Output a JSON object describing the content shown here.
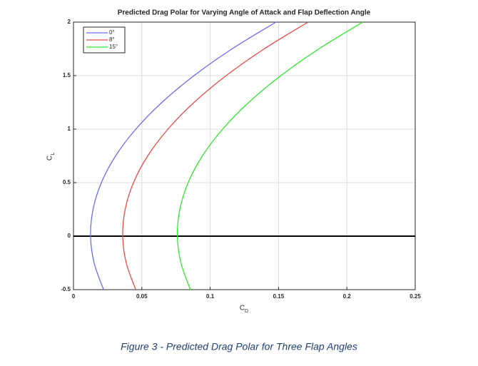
{
  "chart_data": {
    "type": "line",
    "title": "Predicted Drag Polar for Varying Angle of Attack and Flap Deflection Angle",
    "xlabel": {
      "symbol": "C",
      "subscript": "D"
    },
    "ylabel": {
      "symbol": "C",
      "subscript": "L"
    },
    "xlim": [
      0,
      0.25
    ],
    "xticks": [
      0,
      0.05,
      0.1,
      0.15,
      0.2,
      0.25
    ],
    "ylim": [
      -0.5,
      2
    ],
    "yticks": [
      -0.5,
      0,
      0.5,
      1,
      1.5,
      2
    ],
    "grid": true,
    "reference_line": 0,
    "legend": "upper-left",
    "series": [
      {
        "name": "0°",
        "color": "#6b6bf5",
        "x": [
          0.022,
          0.0151,
          0.0125,
          0.0143,
          0.0204,
          0.0308,
          0.0456,
          0.0647,
          0.0882,
          0.116,
          0.1481
        ],
        "values": [
          -0.5,
          -0.25,
          0,
          0.25,
          0.5,
          0.75,
          1,
          1.25,
          1.5,
          1.75,
          2
        ]
      },
      {
        "name": "8°",
        "color": "#f04848",
        "x": [
          0.0455,
          0.0386,
          0.036,
          0.0378,
          0.0439,
          0.0543,
          0.0691,
          0.0882,
          0.1117,
          0.1395,
          0.1716
        ],
        "values": [
          -0.5,
          -0.25,
          0,
          0.25,
          0.5,
          0.75,
          1,
          1.25,
          1.5,
          1.75,
          2
        ]
      },
      {
        "name": "15°",
        "color": "#2ee82e",
        "x": [
          0.0855,
          0.0786,
          0.076,
          0.0778,
          0.0839,
          0.0943,
          0.1091,
          0.1282,
          0.1517,
          0.1795,
          0.2116
        ],
        "values": [
          -0.5,
          -0.25,
          0,
          0.25,
          0.5,
          0.75,
          1,
          1.25,
          1.5,
          1.75,
          2
        ]
      }
    ]
  },
  "caption": "Figure 3 - Predicted Drag Polar for Three Flap Angles"
}
